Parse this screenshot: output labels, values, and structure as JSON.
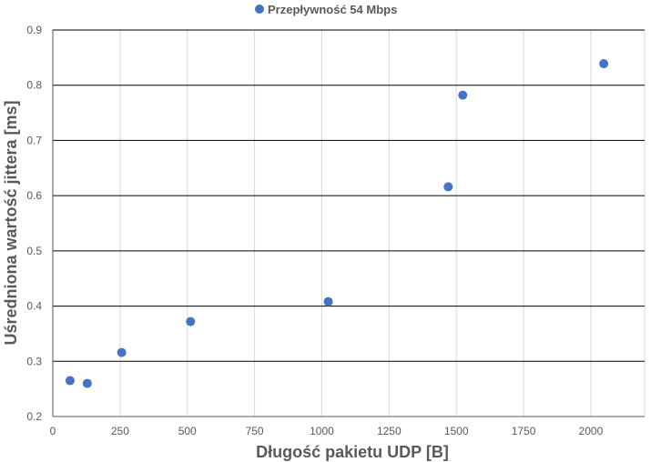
{
  "chart_data": {
    "type": "scatter",
    "title": "",
    "xlabel": "Długość pakietu UDP [B]",
    "ylabel": "Uśredniona wartość jittera [ms]",
    "xlim": [
      0,
      2200
    ],
    "ylim": [
      0.2,
      0.9
    ],
    "x_ticks": [
      "0",
      "250",
      "500",
      "750",
      "1000",
      "1250",
      "1500",
      "1750",
      "2000"
    ],
    "y_ticks": [
      "0.2",
      "0.3",
      "0.4",
      "0.5",
      "0.6",
      "0.7",
      "0.8",
      "0.9"
    ],
    "grid": {
      "horizontal": true,
      "vertical": true
    },
    "legend_position": "top",
    "series": [
      {
        "name": "Przepływność 54 Mbps",
        "color": "#4472c4",
        "x": [
          64,
          128,
          256,
          512,
          1024,
          1470,
          1524,
          2048
        ],
        "y": [
          0.265,
          0.26,
          0.316,
          0.372,
          0.408,
          0.616,
          0.782,
          0.839
        ]
      }
    ]
  }
}
